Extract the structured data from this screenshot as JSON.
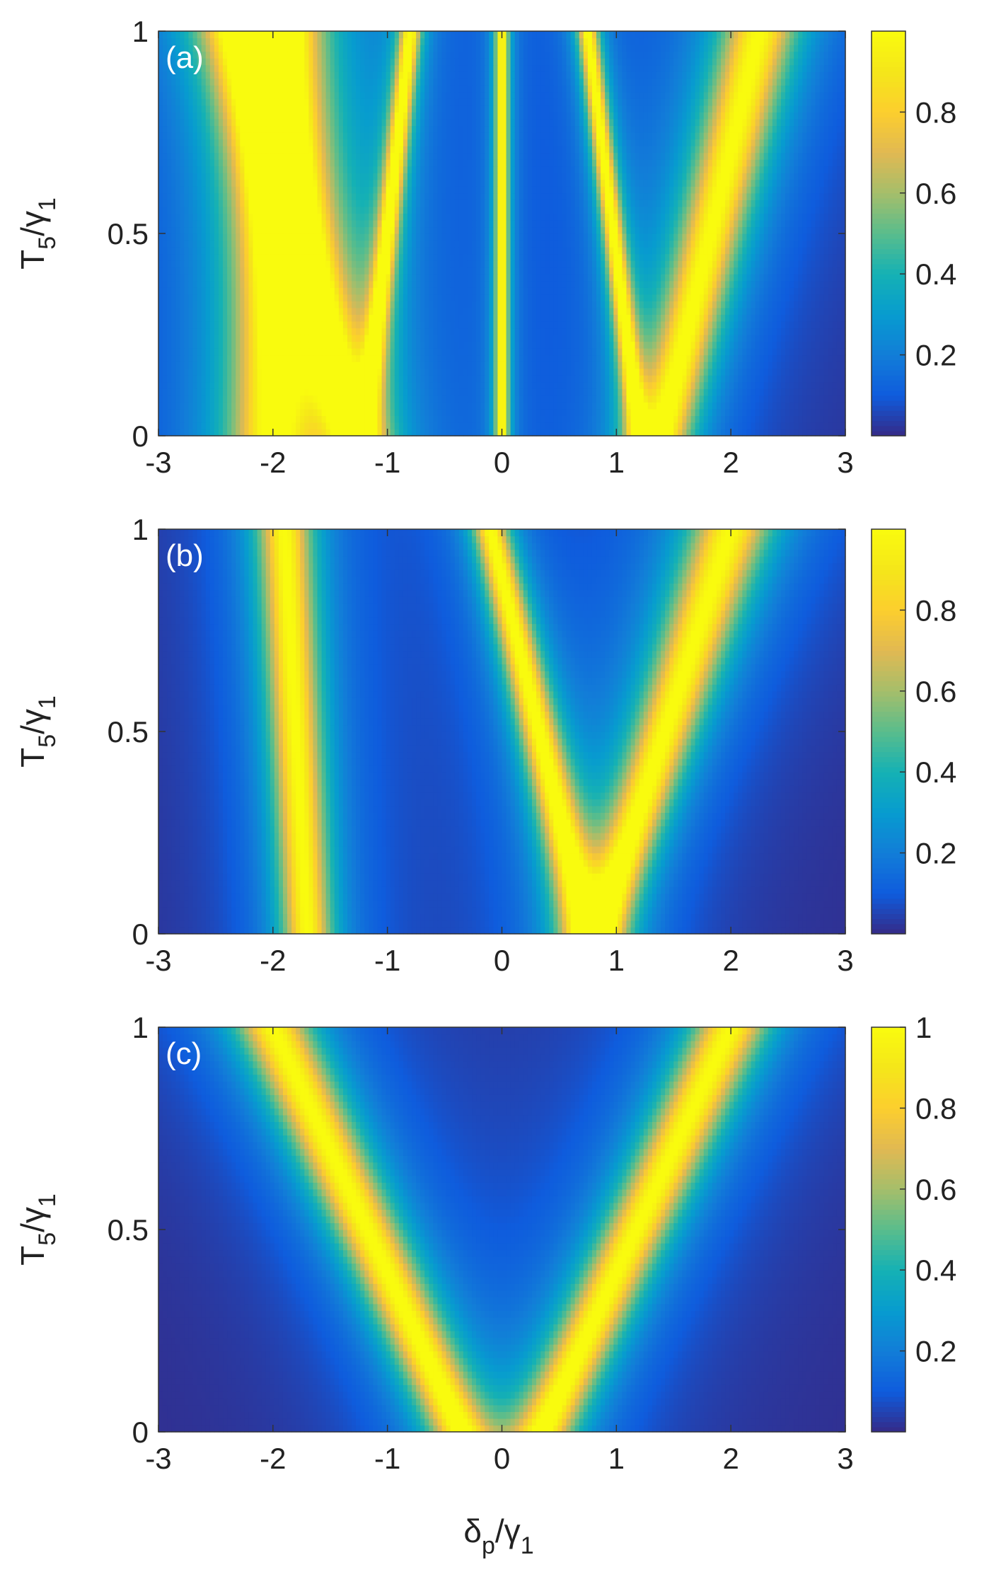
{
  "figure": {
    "xlabel_main": "δ",
    "xlabel_sub": "p",
    "xlabel_tail": "/γ",
    "xlabel_tail_sub": "1",
    "ylabel_main": "T",
    "ylabel_sub": "5",
    "ylabel_tail": "/γ",
    "ylabel_tail_sub": "1"
  },
  "colormap": "parula",
  "chart_data": [
    {
      "type": "heatmap",
      "panel_label": "(a)",
      "x_range": [
        -3,
        3
      ],
      "y_range": [
        0,
        1
      ],
      "x_ticks": [
        "-3",
        "-2",
        "-1",
        "0",
        "1",
        "2",
        "3"
      ],
      "y_ticks": [
        "0",
        "0.5",
        "1"
      ],
      "colorbar_range": [
        0,
        1
      ],
      "colorbar_ticks": [
        "0.2",
        "0.4",
        "0.6",
        "0.8"
      ],
      "peak_value": 1,
      "bands": [
        {
          "x_at_y0": -2.0,
          "x_at_y1": -1.9,
          "width_at_y0": 0.35,
          "width_at_y1": 0.28
        },
        {
          "x_at_y0": -1.2,
          "x_at_y1": -0.8,
          "width_at_y0": 0.08,
          "width_at_y1": 0.08
        },
        {
          "x_at_y0": 0.0,
          "x_at_y1": 0.0,
          "width_at_y0": 0.05,
          "width_at_y1": 0.05
        },
        {
          "x_at_y0": 1.2,
          "x_at_y1": 0.75,
          "width_at_y0": 0.08,
          "width_at_y1": 0.08
        },
        {
          "x_at_y0": 1.4,
          "x_at_y1": 2.25,
          "width_at_y0": 0.22,
          "width_at_y1": 0.3
        },
        {
          "x_at_y0": -1.3,
          "x_at_y1": -2.3,
          "width_at_y0": 0.22,
          "width_at_y1": 0.3
        }
      ]
    },
    {
      "type": "heatmap",
      "panel_label": "(b)",
      "x_range": [
        -3,
        3
      ],
      "y_range": [
        0,
        1
      ],
      "x_ticks": [
        "-3",
        "-2",
        "-1",
        "0",
        "1",
        "2",
        "3"
      ],
      "y_ticks": [
        "0",
        "0.5",
        "1"
      ],
      "colorbar_range": [
        0,
        1
      ],
      "colorbar_ticks": [
        "0.2",
        "0.4",
        "0.6",
        "0.8"
      ],
      "peak_value": 1,
      "bands": [
        {
          "x_at_y0": -1.7,
          "x_at_y1": -1.9,
          "width_at_y0": 0.2,
          "width_at_y1": 0.22
        },
        {
          "x_at_y0": 0.75,
          "x_at_y1": -0.1,
          "width_at_y0": 0.18,
          "width_at_y1": 0.14
        },
        {
          "x_at_y0": 0.85,
          "x_at_y1": 2.0,
          "width_at_y0": 0.18,
          "width_at_y1": 0.32
        }
      ]
    },
    {
      "type": "heatmap",
      "panel_label": "(c)",
      "x_range": [
        -3,
        3
      ],
      "y_range": [
        0,
        1
      ],
      "x_ticks": [
        "-3",
        "-2",
        "-1",
        "0",
        "1",
        "2",
        "3"
      ],
      "y_ticks": [
        "0",
        "0.5",
        "1"
      ],
      "colorbar_range": [
        0,
        1
      ],
      "colorbar_ticks": [
        "0.2",
        "0.4",
        "0.6",
        "0.8",
        "1"
      ],
      "peak_value": 1,
      "bands": [
        {
          "x_at_y0": -0.35,
          "x_at_y1": -2.0,
          "width_at_y0": 0.24,
          "width_at_y1": 0.3
        },
        {
          "x_at_y0": 0.35,
          "x_at_y1": 2.0,
          "width_at_y0": 0.24,
          "width_at_y1": 0.3
        }
      ]
    }
  ]
}
